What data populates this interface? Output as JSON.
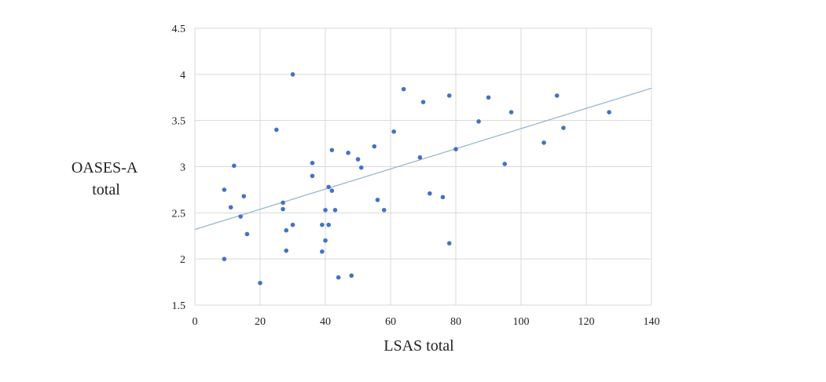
{
  "chart_data": {
    "type": "scatter",
    "title": "",
    "xlabel": "LSAS total",
    "ylabel_lines": [
      "OASES-A",
      "total"
    ],
    "xlim": [
      0,
      140
    ],
    "ylim": [
      1.5,
      4.5
    ],
    "x_ticks": [
      0,
      20,
      40,
      60,
      80,
      100,
      120,
      140
    ],
    "y_ticks": [
      1.5,
      2,
      2.5,
      3,
      3.5,
      4,
      4.5
    ],
    "y_tick_labels": [
      "1.5",
      "2",
      "2.5",
      "3",
      "3.5",
      "4",
      "4.5"
    ],
    "grid": true,
    "legend": "none",
    "point_color": "#4472c4",
    "trendline_color": "#8fb3c9",
    "trendline": {
      "type": "linear",
      "y_at_xmin": 2.32,
      "y_at_xmax": 3.85
    },
    "points": [
      {
        "x": 9,
        "y": 2.75
      },
      {
        "x": 9,
        "y": 2.0
      },
      {
        "x": 11,
        "y": 2.56
      },
      {
        "x": 12,
        "y": 3.01
      },
      {
        "x": 14,
        "y": 2.46
      },
      {
        "x": 15,
        "y": 2.68
      },
      {
        "x": 16,
        "y": 2.27
      },
      {
        "x": 20,
        "y": 1.74
      },
      {
        "x": 25,
        "y": 3.4
      },
      {
        "x": 27,
        "y": 2.61
      },
      {
        "x": 27,
        "y": 2.54
      },
      {
        "x": 28,
        "y": 2.31
      },
      {
        "x": 28,
        "y": 2.09
      },
      {
        "x": 30,
        "y": 2.37
      },
      {
        "x": 30,
        "y": 4.0
      },
      {
        "x": 36,
        "y": 3.04
      },
      {
        "x": 36,
        "y": 2.9
      },
      {
        "x": 39,
        "y": 2.37
      },
      {
        "x": 39,
        "y": 2.08
      },
      {
        "x": 40,
        "y": 2.53
      },
      {
        "x": 40,
        "y": 2.2
      },
      {
        "x": 41,
        "y": 2.78
      },
      {
        "x": 41,
        "y": 2.37
      },
      {
        "x": 42,
        "y": 3.18
      },
      {
        "x": 42,
        "y": 2.74
      },
      {
        "x": 43,
        "y": 2.53
      },
      {
        "x": 44,
        "y": 1.8
      },
      {
        "x": 47,
        "y": 3.15
      },
      {
        "x": 48,
        "y": 1.82
      },
      {
        "x": 50,
        "y": 3.08
      },
      {
        "x": 51,
        "y": 2.99
      },
      {
        "x": 55,
        "y": 3.22
      },
      {
        "x": 56,
        "y": 2.64
      },
      {
        "x": 58,
        "y": 2.53
      },
      {
        "x": 61,
        "y": 3.38
      },
      {
        "x": 64,
        "y": 3.84
      },
      {
        "x": 69,
        "y": 3.1
      },
      {
        "x": 70,
        "y": 3.7
      },
      {
        "x": 72,
        "y": 2.71
      },
      {
        "x": 76,
        "y": 2.67
      },
      {
        "x": 78,
        "y": 3.77
      },
      {
        "x": 78,
        "y": 2.17
      },
      {
        "x": 80,
        "y": 3.19
      },
      {
        "x": 87,
        "y": 3.49
      },
      {
        "x": 90,
        "y": 3.75
      },
      {
        "x": 95,
        "y": 3.03
      },
      {
        "x": 97,
        "y": 3.59
      },
      {
        "x": 107,
        "y": 3.26
      },
      {
        "x": 111,
        "y": 3.77
      },
      {
        "x": 113,
        "y": 3.42
      },
      {
        "x": 127,
        "y": 3.59
      }
    ]
  }
}
